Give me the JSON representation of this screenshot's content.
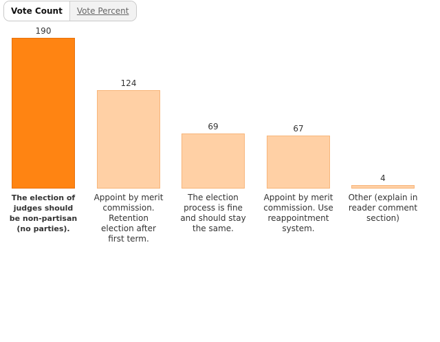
{
  "toggle": {
    "active": "Vote Count",
    "inactive": "Vote Percent"
  },
  "colors": {
    "highlight": "#ff8412",
    "highlight_border": "#e8700a",
    "normal": "#ffd0a5",
    "normal_border": "#f7b57a"
  },
  "chart_data": {
    "type": "bar",
    "categories": [
      "The election of judges should be non-partisan (no parties).",
      "Appoint by merit commission. Retention election after first term.",
      "The election process is fine and should stay the same.",
      "Appoint by merit commission. Use reappointment system.",
      "Other (explain in reader comment section)"
    ],
    "values": [
      190,
      124,
      69,
      67,
      4
    ],
    "highlighted_index": 0,
    "ylim": [
      0,
      190
    ],
    "grid": false,
    "data_labels": true
  }
}
